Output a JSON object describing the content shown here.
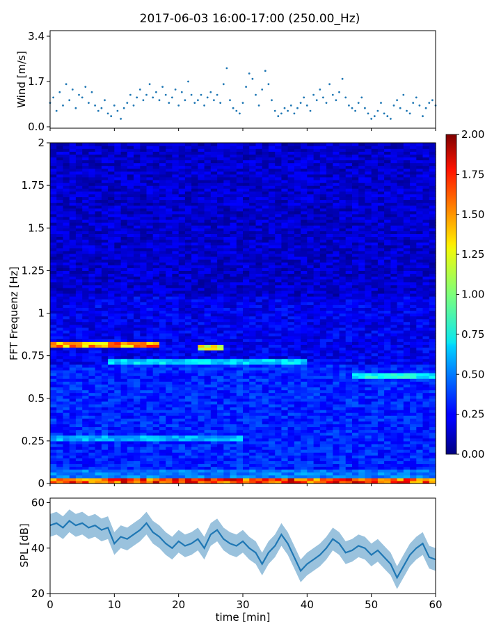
{
  "title": "2017-06-03 16:00-17:00 (250.00_Hz)",
  "chart_data": [
    {
      "type": "scatter",
      "panel": "wind",
      "ylabel": "Wind [m/s]",
      "xlabel": "",
      "xlim": [
        0,
        60
      ],
      "ylim": [
        0,
        3.4
      ],
      "y_ticks": [
        0.0,
        1.7,
        3.4
      ],
      "y_tick_labels": [
        "0.0",
        "1.7",
        "3.4"
      ],
      "color": "#1f77b4",
      "x_unit": "min",
      "x": [
        0.0,
        0.5,
        1.0,
        1.5,
        2.0,
        2.5,
        3.0,
        3.5,
        4.0,
        4.5,
        5.0,
        5.5,
        6.0,
        6.5,
        7.0,
        7.5,
        8.0,
        8.5,
        9.0,
        9.5,
        10.0,
        10.5,
        11.0,
        11.5,
        12.0,
        12.5,
        13.0,
        13.5,
        14.0,
        14.5,
        15.0,
        15.5,
        16.0,
        16.5,
        17.0,
        17.5,
        18.0,
        18.5,
        19.0,
        19.5,
        20.0,
        20.5,
        21.0,
        21.5,
        22.0,
        22.5,
        23.0,
        23.5,
        24.0,
        24.5,
        25.0,
        25.5,
        26.0,
        26.5,
        27.0,
        27.5,
        28.0,
        28.5,
        29.0,
        29.5,
        30.0,
        30.5,
        31.0,
        31.5,
        32.0,
        32.5,
        33.0,
        33.5,
        34.0,
        34.5,
        35.0,
        35.5,
        36.0,
        36.5,
        37.0,
        37.5,
        38.0,
        38.5,
        39.0,
        39.5,
        40.0,
        40.5,
        41.0,
        41.5,
        42.0,
        42.5,
        43.0,
        43.5,
        44.0,
        44.5,
        45.0,
        45.5,
        46.0,
        46.5,
        47.0,
        47.5,
        48.0,
        48.5,
        49.0,
        49.5,
        50.0,
        50.5,
        51.0,
        51.5,
        52.0,
        52.5,
        53.0,
        53.5,
        54.0,
        54.5,
        55.0,
        55.5,
        56.0,
        56.5,
        57.0,
        57.5,
        58.0,
        58.5,
        59.0,
        59.5,
        60.0
      ],
      "y": [
        0.9,
        1.1,
        0.6,
        1.3,
        0.8,
        1.6,
        1.0,
        1.4,
        0.7,
        1.2,
        1.1,
        1.5,
        0.9,
        1.3,
        0.8,
        0.6,
        0.7,
        1.0,
        0.5,
        0.4,
        0.8,
        0.6,
        0.3,
        0.7,
        0.9,
        1.2,
        0.8,
        1.1,
        1.4,
        1.0,
        1.2,
        1.6,
        1.1,
        1.3,
        1.0,
        1.5,
        1.2,
        0.9,
        1.1,
        1.4,
        0.8,
        1.3,
        1.0,
        1.7,
        1.2,
        0.9,
        1.0,
        1.2,
        0.8,
        1.1,
        1.3,
        1.0,
        1.2,
        0.9,
        1.6,
        2.2,
        1.0,
        0.7,
        0.6,
        0.5,
        0.9,
        1.5,
        2.0,
        1.8,
        1.2,
        0.8,
        1.4,
        2.1,
        1.6,
        1.0,
        0.6,
        0.4,
        0.5,
        0.7,
        0.6,
        0.8,
        0.5,
        0.7,
        0.9,
        1.1,
        0.8,
        0.6,
        1.2,
        1.0,
        1.4,
        1.1,
        0.9,
        1.6,
        1.2,
        1.0,
        1.3,
        1.8,
        1.1,
        0.8,
        0.7,
        0.6,
        0.9,
        1.1,
        0.7,
        0.5,
        0.3,
        0.4,
        0.6,
        0.9,
        0.5,
        0.4,
        0.3,
        0.8,
        1.0,
        0.7,
        1.2,
        0.6,
        0.5,
        0.9,
        1.1,
        0.8,
        0.4,
        0.7,
        0.9,
        1.0,
        0.8
      ]
    },
    {
      "type": "heatmap",
      "panel": "spectrogram",
      "ylabel": "FFT Frequenz [Hz]",
      "xlabel": "",
      "xlim": [
        0,
        60
      ],
      "ylim": [
        0,
        2
      ],
      "y_tick_labels": [
        "0",
        "0.25",
        "0.5",
        "0.75",
        "1",
        "1.25",
        "1.5",
        "1.75",
        "2"
      ],
      "y_ticks": [
        0,
        0.25,
        0.5,
        0.75,
        1,
        1.25,
        1.5,
        1.75,
        2
      ],
      "colormap": "jet",
      "color_range": [
        0,
        2
      ],
      "colorbar_ticks": [
        0.0,
        0.25,
        0.5,
        0.75,
        1.0,
        1.25,
        1.5,
        1.75,
        2.0
      ],
      "colorbar_tick_labels": [
        "0.00",
        "0.25",
        "0.50",
        "0.75",
        "1.00",
        "1.25",
        "1.50",
        "1.75",
        "2.00"
      ],
      "features": [
        {
          "freq": 0.82,
          "t_start": 0,
          "t_end": 17,
          "intensity": 1.7
        },
        {
          "freq": 0.8,
          "t_start": 23,
          "t_end": 27,
          "intensity": 1.4
        },
        {
          "freq": 0.72,
          "t_start": 9,
          "t_end": 40,
          "intensity": 0.8
        },
        {
          "freq": 0.63,
          "t_start": 47,
          "t_end": 60,
          "intensity": 0.9
        },
        {
          "freq": 0.27,
          "t_start": 0,
          "t_end": 30,
          "intensity": 0.7
        },
        {
          "freq": 0.01,
          "t_start": 0,
          "t_end": 60,
          "intensity": 1.9
        }
      ]
    },
    {
      "type": "line",
      "panel": "spl",
      "ylabel": "SPL [dB]",
      "xlabel": "time [min]",
      "xlim": [
        0,
        60
      ],
      "ylim": [
        20,
        62
      ],
      "y_ticks": [
        20,
        40,
        60
      ],
      "y_tick_labels": [
        "20",
        "40",
        "60"
      ],
      "x_ticks": [
        0,
        10,
        20,
        30,
        40,
        50,
        60
      ],
      "x_tick_labels": [
        "0",
        "10",
        "20",
        "30",
        "40",
        "50",
        "60"
      ],
      "color": "#1f77b4",
      "x": [
        0,
        1,
        2,
        3,
        4,
        5,
        6,
        7,
        8,
        9,
        10,
        11,
        12,
        13,
        14,
        15,
        16,
        17,
        18,
        19,
        20,
        21,
        22,
        23,
        24,
        25,
        26,
        27,
        28,
        29,
        30,
        31,
        32,
        33,
        34,
        35,
        36,
        37,
        38,
        39,
        40,
        41,
        42,
        43,
        44,
        45,
        46,
        47,
        48,
        49,
        50,
        51,
        52,
        53,
        54,
        55,
        56,
        57,
        58,
        59,
        60
      ],
      "y": [
        50,
        51,
        49,
        52,
        50,
        51,
        49,
        50,
        48,
        49,
        42,
        45,
        44,
        46,
        48,
        51,
        47,
        45,
        42,
        40,
        43,
        41,
        42,
        44,
        40,
        46,
        48,
        44,
        42,
        41,
        43,
        40,
        38,
        33,
        38,
        41,
        46,
        42,
        36,
        30,
        33,
        35,
        37,
        40,
        44,
        42,
        38,
        39,
        41,
        40,
        37,
        39,
        36,
        33,
        27,
        32,
        37,
        40,
        42,
        36,
        35
      ],
      "y_low": [
        45,
        46,
        44,
        47,
        45,
        46,
        44,
        45,
        43,
        44,
        37,
        40,
        39,
        41,
        43,
        46,
        42,
        40,
        37,
        35,
        38,
        36,
        37,
        39,
        35,
        41,
        43,
        39,
        37,
        36,
        38,
        35,
        33,
        28,
        33,
        36,
        41,
        37,
        31,
        25,
        28,
        30,
        32,
        35,
        39,
        37,
        33,
        34,
        36,
        35,
        32,
        34,
        31,
        28,
        22,
        27,
        32,
        35,
        37,
        31,
        30
      ],
      "y_high": [
        55,
        56,
        54,
        57,
        55,
        56,
        54,
        55,
        53,
        54,
        47,
        50,
        49,
        51,
        53,
        56,
        52,
        50,
        47,
        45,
        48,
        46,
        47,
        49,
        45,
        51,
        53,
        49,
        47,
        46,
        48,
        45,
        43,
        38,
        43,
        46,
        51,
        47,
        41,
        35,
        38,
        40,
        42,
        45,
        49,
        47,
        43,
        44,
        46,
        45,
        42,
        44,
        41,
        38,
        32,
        37,
        42,
        45,
        47,
        41,
        40
      ]
    }
  ]
}
